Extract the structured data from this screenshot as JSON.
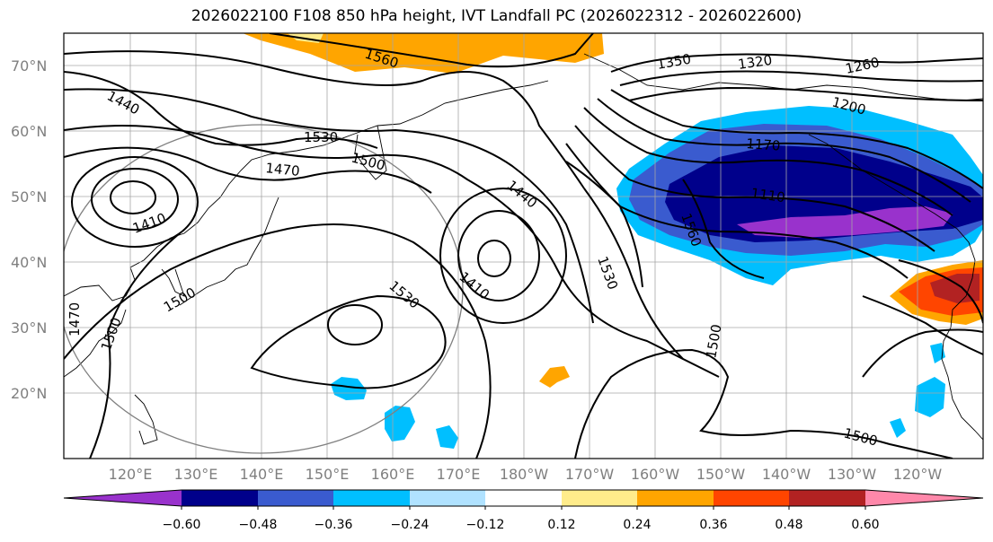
{
  "title": "2026022100 F108 850 hPa height, IVT Landfall PC (2026022312 - 2026022600)",
  "map": {
    "lat_labels": [
      "70°N",
      "60°N",
      "50°N",
      "40°N",
      "30°N",
      "20°N"
    ],
    "lon_labels": [
      "120°E",
      "130°E",
      "140°E",
      "150°E",
      "160°E",
      "170°E",
      "180°W",
      "170°W",
      "160°W",
      "150°W",
      "140°W",
      "130°W",
      "120°W"
    ],
    "contour_labels": [
      "1560",
      "1350",
      "1320",
      "1260",
      "1440",
      "1200",
      "1530",
      "1500",
      "1470",
      "1170",
      "1410",
      "1440",
      "1110",
      "1560",
      "1410",
      "1530",
      "1500",
      "1530",
      "1470",
      "1500",
      "1500",
      "1500"
    ]
  },
  "colorbar": {
    "ticks": [
      "−0.60",
      "−0.48",
      "−0.36",
      "−0.24",
      "−0.12",
      "0.12",
      "0.24",
      "0.36",
      "0.48",
      "0.60"
    ],
    "colors": [
      "#9932cc",
      "#00008b",
      "#3a5bcf",
      "#00bfff",
      "#b0e2ff",
      "#ffffff",
      "#ffec8b",
      "#ffa500",
      "#ff4500",
      "#b22222",
      "#ff88aa"
    ]
  }
}
